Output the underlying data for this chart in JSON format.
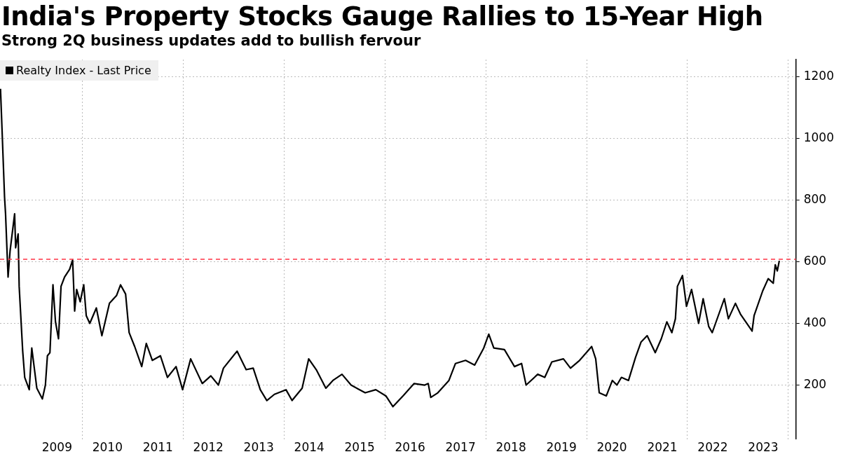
{
  "chart_data": {
    "type": "line",
    "title": "India's Property Stocks Gauge Rallies to 15-Year High",
    "subtitle": "Strong 2Q business updates add to bullish fervour",
    "x": [
      2008.38,
      2008.41,
      2008.46,
      2008.48,
      2008.53,
      2008.57,
      2008.66,
      2008.68,
      2008.73,
      2008.75,
      2008.82,
      2008.86,
      2008.95,
      2009.0,
      2009.1,
      2009.21,
      2009.27,
      2009.31,
      2009.36,
      2009.42,
      2009.47,
      2009.53,
      2009.58,
      2009.65,
      2009.75,
      2009.81,
      2009.85,
      2009.89,
      2009.96,
      2010.03,
      2010.08,
      2010.15,
      2010.28,
      2010.39,
      2010.54,
      2010.68,
      2010.76,
      2010.86,
      2010.93,
      2011.04,
      2011.18,
      2011.27,
      2011.39,
      2011.55,
      2011.69,
      2011.86,
      2011.99,
      2012.15,
      2012.38,
      2012.55,
      2012.7,
      2012.8,
      2013.07,
      2013.25,
      2013.39,
      2013.53,
      2013.66,
      2013.81,
      2014.04,
      2014.16,
      2014.36,
      2014.49,
      2014.64,
      2014.83,
      2014.97,
      2015.15,
      2015.33,
      2015.61,
      2015.82,
      2016.02,
      2016.16,
      2016.36,
      2016.58,
      2016.79,
      2016.86,
      2016.91,
      2017.05,
      2017.27,
      2017.4,
      2017.6,
      2017.78,
      2017.96,
      2018.06,
      2018.16,
      2018.37,
      2018.57,
      2018.71,
      2018.8,
      2019.03,
      2019.17,
      2019.31,
      2019.54,
      2019.68,
      2019.86,
      2020.1,
      2020.18,
      2020.25,
      2020.39,
      2020.51,
      2020.6,
      2020.69,
      2020.83,
      2020.97,
      2021.08,
      2021.2,
      2021.36,
      2021.48,
      2021.59,
      2021.69,
      2021.76,
      2021.8,
      2021.9,
      2021.98,
      2022.08,
      2022.22,
      2022.31,
      2022.42,
      2022.49,
      2022.73,
      2022.81,
      2022.95,
      2023.05,
      2023.28,
      2023.32,
      2023.49,
      2023.6,
      2023.7,
      2023.74,
      2023.78,
      2023.82
    ],
    "series": [
      {
        "name": "Realty Index - Last Price",
        "color": "#000000",
        "values": [
          1160,
          1030,
          810,
          755,
          550,
          635,
          755,
          645,
          690,
          520,
          310,
          225,
          185,
          320,
          190,
          155,
          200,
          295,
          305,
          525,
          405,
          350,
          520,
          550,
          575,
          605,
          440,
          510,
          470,
          525,
          425,
          400,
          450,
          360,
          465,
          490,
          525,
          495,
          370,
          325,
          260,
          335,
          280,
          295,
          225,
          260,
          185,
          285,
          205,
          230,
          200,
          255,
          310,
          250,
          255,
          185,
          150,
          170,
          185,
          150,
          190,
          285,
          250,
          190,
          215,
          235,
          200,
          175,
          185,
          165,
          130,
          165,
          205,
          200,
          205,
          160,
          175,
          215,
          270,
          280,
          265,
          320,
          365,
          320,
          315,
          260,
          270,
          200,
          235,
          225,
          275,
          285,
          255,
          280,
          325,
          285,
          175,
          165,
          215,
          200,
          225,
          215,
          290,
          340,
          360,
          305,
          350,
          405,
          370,
          415,
          520,
          555,
          455,
          510,
          400,
          480,
          390,
          370,
          480,
          415,
          465,
          430,
          375,
          425,
          505,
          545,
          530,
          590,
          570,
          603
        ]
      }
    ],
    "xlim": [
      2008.37,
      2024.15
    ],
    "ylim": [
      25,
      1255
    ],
    "xticks": [
      {
        "value": 2009.5,
        "label": "2009"
      },
      {
        "value": 2010,
        "label": null
      },
      {
        "value": 2010.5,
        "label": "2010"
      },
      {
        "value": 2011.5,
        "label": "2011"
      },
      {
        "value": 2012,
        "label": null
      },
      {
        "value": 2012.5,
        "label": "2012"
      },
      {
        "value": 2013.5,
        "label": "2013"
      },
      {
        "value": 2014,
        "label": null
      },
      {
        "value": 2014.5,
        "label": "2014"
      },
      {
        "value": 2015.5,
        "label": "2015"
      },
      {
        "value": 2016,
        "label": null
      },
      {
        "value": 2016.5,
        "label": "2016"
      },
      {
        "value": 2017.5,
        "label": "2017"
      },
      {
        "value": 2018,
        "label": null
      },
      {
        "value": 2018.5,
        "label": "2018"
      },
      {
        "value": 2019.5,
        "label": "2019"
      },
      {
        "value": 2020,
        "label": null
      },
      {
        "value": 2020.5,
        "label": "2020"
      },
      {
        "value": 2021.5,
        "label": "2021"
      },
      {
        "value": 2022,
        "label": null
      },
      {
        "value": 2022.5,
        "label": "2022"
      },
      {
        "value": 2023.5,
        "label": "2023"
      },
      {
        "value": 2024,
        "label": null
      }
    ],
    "yticks": [
      200,
      400,
      600,
      800,
      1000,
      1200
    ],
    "ref_lines": [
      {
        "axis": "y",
        "value": 608,
        "color": "#ff3344",
        "line_style": "dashed"
      }
    ],
    "grid": true,
    "legend": "top left",
    "marker": "none",
    "line_style": "solid"
  }
}
